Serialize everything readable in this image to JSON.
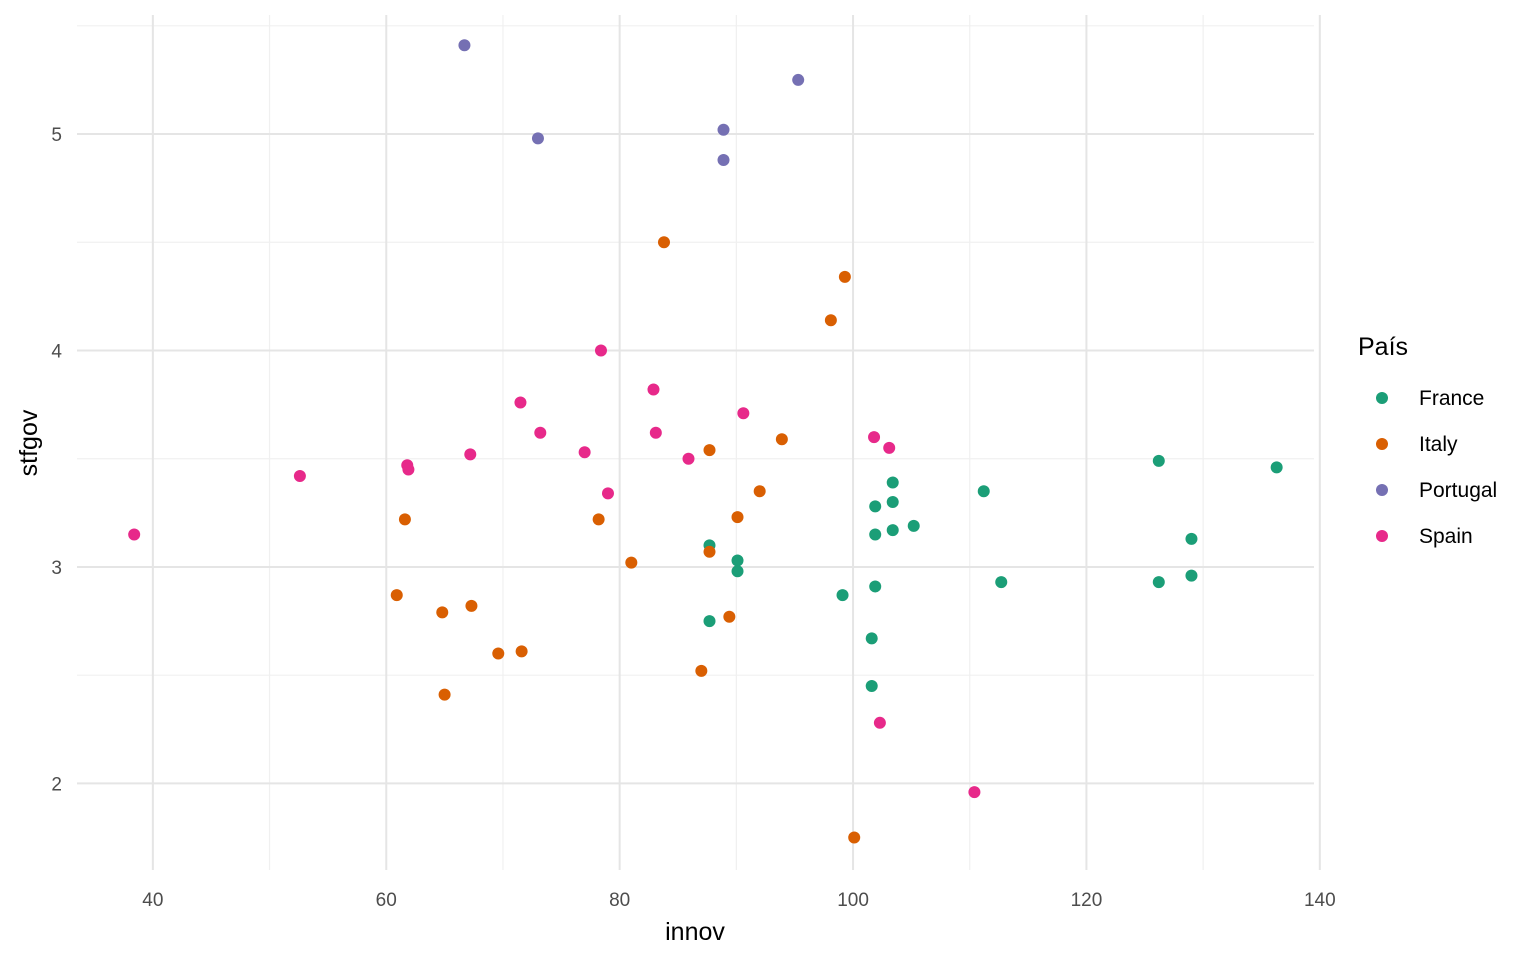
{
  "chart_data": {
    "type": "scatter",
    "xlabel": "innov",
    "ylabel": "stfgov",
    "xlim": [
      33.5,
      139.5
    ],
    "ylim": [
      1.6,
      5.55
    ],
    "x_ticks": [
      40,
      60,
      80,
      100,
      120,
      140
    ],
    "x_tick_labels": [
      "40",
      "60",
      "80",
      "100",
      "120",
      "140"
    ],
    "y_ticks": [
      2,
      3,
      4,
      5
    ],
    "y_tick_labels": [
      "2",
      "3",
      "4",
      "5"
    ],
    "grid": true,
    "legend": {
      "title": "País",
      "position": "right"
    },
    "series": [
      {
        "name": "France",
        "color": "#1b9e77",
        "points": [
          [
            87.7,
            3.1
          ],
          [
            90.1,
            3.03
          ],
          [
            90.1,
            2.98
          ],
          [
            87.7,
            2.75
          ],
          [
            99.1,
            2.87
          ],
          [
            101.6,
            2.67
          ],
          [
            101.6,
            2.45
          ],
          [
            101.9,
            2.91
          ],
          [
            101.9,
            3.28
          ],
          [
            101.9,
            3.15
          ],
          [
            103.4,
            3.39
          ],
          [
            103.4,
            3.3
          ],
          [
            103.4,
            3.17
          ],
          [
            105.2,
            3.19
          ],
          [
            111.2,
            3.35
          ],
          [
            112.7,
            2.93
          ],
          [
            126.2,
            3.49
          ],
          [
            126.2,
            2.93
          ],
          [
            129.0,
            3.13
          ],
          [
            129.0,
            2.96
          ],
          [
            136.3,
            3.46
          ]
        ]
      },
      {
        "name": "Italy",
        "color": "#d95f02",
        "points": [
          [
            83.8,
            4.5
          ],
          [
            99.3,
            4.34
          ],
          [
            98.1,
            4.14
          ],
          [
            93.9,
            3.59
          ],
          [
            87.7,
            3.54
          ],
          [
            92.0,
            3.35
          ],
          [
            90.1,
            3.23
          ],
          [
            78.2,
            3.22
          ],
          [
            61.6,
            3.22
          ],
          [
            87.7,
            3.07
          ],
          [
            81.0,
            3.02
          ],
          [
            60.9,
            2.87
          ],
          [
            67.3,
            2.82
          ],
          [
            64.8,
            2.79
          ],
          [
            89.4,
            2.77
          ],
          [
            71.6,
            2.61
          ],
          [
            69.6,
            2.6
          ],
          [
            87.0,
            2.52
          ],
          [
            65.0,
            2.41
          ],
          [
            100.1,
            1.75
          ]
        ]
      },
      {
        "name": "Portugal",
        "color": "#7570b3",
        "points": [
          [
            66.7,
            5.41
          ],
          [
            95.3,
            5.25
          ],
          [
            73.0,
            4.98
          ],
          [
            88.9,
            5.02
          ],
          [
            88.9,
            4.88
          ]
        ]
      },
      {
        "name": "Spain",
        "color": "#e7298a",
        "points": [
          [
            78.4,
            4.0
          ],
          [
            82.9,
            3.82
          ],
          [
            71.5,
            3.76
          ],
          [
            90.6,
            3.71
          ],
          [
            73.2,
            3.62
          ],
          [
            83.1,
            3.62
          ],
          [
            101.8,
            3.6
          ],
          [
            103.1,
            3.55
          ],
          [
            77.0,
            3.53
          ],
          [
            67.2,
            3.52
          ],
          [
            85.9,
            3.5
          ],
          [
            61.8,
            3.47
          ],
          [
            61.9,
            3.45
          ],
          [
            52.6,
            3.42
          ],
          [
            79.0,
            3.34
          ],
          [
            38.4,
            3.15
          ],
          [
            102.3,
            2.28
          ],
          [
            110.4,
            1.96
          ]
        ]
      }
    ]
  }
}
